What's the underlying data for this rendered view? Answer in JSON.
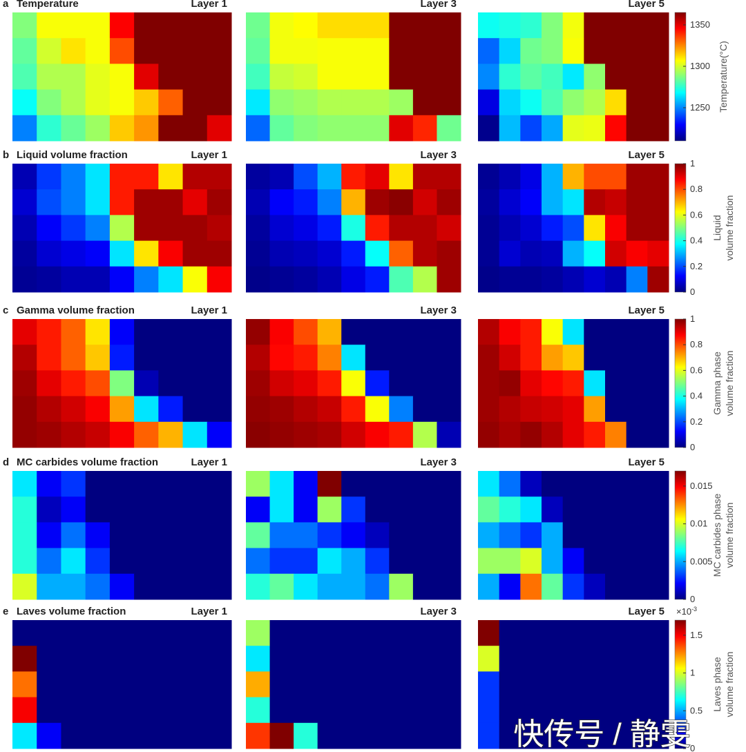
{
  "chart_data": [
    {
      "type": "heatmap",
      "label": "a",
      "title": "Temperature",
      "colorbar": {
        "label": [
          "Temperature(°C)"
        ],
        "clim": [
          1210,
          1365
        ],
        "ticks": [
          1250,
          1300,
          1350
        ]
      },
      "panels": [
        {
          "title": "Layer 1",
          "values": [
            [
              1288,
              1306,
              1306,
              1306,
              1346,
              1365,
              1365,
              1365,
              1365
            ],
            [
              1283,
              1300,
              1311,
              1306,
              1334,
              1365,
              1365,
              1365,
              1365
            ],
            [
              1280,
              1295,
              1295,
              1303,
              1306,
              1350,
              1365,
              1365,
              1365
            ],
            [
              1269,
              1288,
              1295,
              1303,
              1306,
              1315,
              1331,
              1365,
              1365
            ],
            [
              1249,
              1275,
              1284,
              1292,
              1315,
              1323,
              1365,
              1365,
              1350
            ]
          ]
        },
        {
          "title": "Layer 3",
          "values": [
            [
              1285,
              1305,
              1307,
              1312,
              1312,
              1312,
              1365,
              1365,
              1365
            ],
            [
              1283,
              1305,
              1305,
              1306,
              1306,
              1306,
              1365,
              1365,
              1365
            ],
            [
              1278,
              1298,
              1300,
              1306,
              1306,
              1306,
              1365,
              1365,
              1365
            ],
            [
              1265,
              1290,
              1292,
              1295,
              1295,
              1295,
              1292,
              1365,
              1365
            ],
            [
              1245,
              1283,
              1288,
              1290,
              1290,
              1290,
              1350,
              1340,
              1285
            ]
          ]
        },
        {
          "title": "Layer 5",
          "values": [
            [
              1270,
              1272,
              1275,
              1288,
              1305,
              1365,
              1365,
              1365,
              1365
            ],
            [
              1245,
              1262,
              1285,
              1288,
              1306,
              1365,
              1365,
              1365,
              1365
            ],
            [
              1250,
              1275,
              1282,
              1278,
              1265,
              1290,
              1365,
              1365,
              1365
            ],
            [
              1225,
              1262,
              1270,
              1280,
              1290,
              1295,
              1312,
              1365,
              1365
            ],
            [
              1212,
              1258,
              1240,
              1255,
              1303,
              1304,
              1345,
              1365,
              1365
            ]
          ]
        }
      ]
    },
    {
      "type": "heatmap",
      "label": "b",
      "title": "Liquid volume fraction",
      "colorbar": {
        "label": [
          "Liquid",
          "volume fraction"
        ],
        "clim": [
          0,
          1
        ],
        "ticks": [
          0,
          0.2,
          0.4,
          0.6,
          0.8,
          1
        ]
      },
      "panels": [
        {
          "title": "Layer 1",
          "values": [
            [
              0.05,
              0.18,
              0.25,
              0.35,
              0.85,
              0.85,
              0.65,
              0.95,
              0.95
            ],
            [
              0.08,
              0.2,
              0.25,
              0.35,
              0.85,
              0.97,
              0.97,
              0.9,
              0.97
            ],
            [
              0.05,
              0.12,
              0.18,
              0.25,
              0.55,
              0.97,
              0.97,
              0.97,
              0.95
            ],
            [
              0.03,
              0.08,
              0.1,
              0.12,
              0.35,
              0.65,
              0.88,
              0.97,
              0.97
            ],
            [
              0.02,
              0.03,
              0.05,
              0.05,
              0.12,
              0.25,
              0.35,
              0.62,
              0.88
            ]
          ]
        },
        {
          "title": "Layer 3",
          "values": [
            [
              0.03,
              0.05,
              0.2,
              0.3,
              0.85,
              0.9,
              0.65,
              0.95,
              0.95
            ],
            [
              0.05,
              0.12,
              0.15,
              0.25,
              0.7,
              0.97,
              0.99,
              0.92,
              0.97
            ],
            [
              0.03,
              0.08,
              0.1,
              0.15,
              0.4,
              0.85,
              0.95,
              0.95,
              0.92
            ],
            [
              0.02,
              0.05,
              0.06,
              0.08,
              0.15,
              0.38,
              0.78,
              0.95,
              0.97
            ],
            [
              0.01,
              0.02,
              0.03,
              0.05,
              0.1,
              0.15,
              0.45,
              0.55,
              0.97
            ]
          ]
        },
        {
          "title": "Layer 5",
          "values": [
            [
              0.02,
              0.05,
              0.1,
              0.3,
              0.7,
              0.8,
              0.8,
              0.97,
              0.97
            ],
            [
              0.03,
              0.08,
              0.12,
              0.3,
              0.35,
              0.95,
              0.93,
              0.97,
              0.97
            ],
            [
              0.02,
              0.05,
              0.08,
              0.15,
              0.2,
              0.65,
              0.88,
              0.97,
              0.97
            ],
            [
              0.02,
              0.08,
              0.05,
              0.06,
              0.3,
              0.38,
              0.92,
              0.88,
              0.9
            ],
            [
              0.01,
              0.02,
              0.02,
              0.03,
              0.05,
              0.08,
              0.05,
              0.25,
              0.97
            ]
          ]
        }
      ]
    },
    {
      "type": "heatmap",
      "label": "c",
      "title": "Gamma volume fraction",
      "colorbar": {
        "label": [
          "Gamma phase",
          "volume fraction"
        ],
        "clim": [
          0,
          1
        ],
        "ticks": [
          0,
          0.2,
          0.4,
          0.6,
          0.8,
          1
        ]
      },
      "panels": [
        {
          "title": "Layer 1",
          "values": [
            [
              0.9,
              0.85,
              0.78,
              0.65,
              0.12,
              0,
              0,
              0,
              0
            ],
            [
              0.95,
              0.85,
              0.78,
              0.68,
              0.15,
              0,
              0,
              0,
              0
            ],
            [
              0.97,
              0.9,
              0.85,
              0.8,
              0.5,
              0.05,
              0,
              0,
              0
            ],
            [
              0.98,
              0.95,
              0.92,
              0.88,
              0.72,
              0.35,
              0.15,
              0,
              0
            ],
            [
              0.98,
              0.97,
              0.95,
              0.93,
              0.88,
              0.78,
              0.7,
              0.35,
              0.12
            ]
          ]
        },
        {
          "title": "Layer 3",
          "values": [
            [
              0.98,
              0.88,
              0.8,
              0.7,
              0,
              0,
              0,
              0,
              0
            ],
            [
              0.95,
              0.87,
              0.85,
              0.75,
              0.35,
              0,
              0,
              0,
              0
            ],
            [
              0.97,
              0.92,
              0.9,
              0.85,
              0.62,
              0.15,
              0,
              0,
              0
            ],
            [
              0.98,
              0.97,
              0.95,
              0.93,
              0.85,
              0.62,
              0.25,
              0,
              0
            ],
            [
              0.99,
              0.98,
              0.97,
              0.96,
              0.92,
              0.88,
              0.85,
              0.55,
              0.05
            ]
          ]
        },
        {
          "title": "Layer 5",
          "values": [
            [
              0.95,
              0.88,
              0.85,
              0.62,
              0.35,
              0,
              0,
              0,
              0
            ],
            [
              0.97,
              0.92,
              0.85,
              0.72,
              0.68,
              0,
              0,
              0,
              0
            ],
            [
              0.97,
              0.98,
              0.9,
              0.87,
              0.85,
              0.35,
              0,
              0,
              0
            ],
            [
              0.97,
              0.95,
              0.93,
              0.92,
              0.9,
              0.72,
              0,
              0,
              0
            ],
            [
              0.98,
              0.96,
              0.98,
              0.95,
              0.9,
              0.85,
              0.75,
              0,
              0
            ]
          ]
        }
      ]
    },
    {
      "type": "heatmap",
      "label": "d",
      "title": "MC carbides volume fraction",
      "colorbar": {
        "label": [
          "MC carbides phase",
          "volume fraction"
        ],
        "clim": [
          0,
          0.017
        ],
        "ticks": [
          0,
          0.005,
          0.01,
          0.015
        ]
      },
      "panels": [
        {
          "title": "Layer 1",
          "values": [
            [
              0.006,
              0.002,
              0.003,
              0,
              0,
              0,
              0,
              0,
              0
            ],
            [
              0.007,
              0.001,
              0.002,
              0,
              0,
              0,
              0,
              0,
              0
            ],
            [
              0.007,
              0.002,
              0.004,
              0.002,
              0,
              0,
              0,
              0,
              0
            ],
            [
              0.007,
              0.004,
              0.006,
              0.003,
              0,
              0,
              0,
              0,
              0
            ],
            [
              0.01,
              0.005,
              0.005,
              0.004,
              0.002,
              0,
              0,
              0,
              0
            ]
          ]
        },
        {
          "title": "Layer 3",
          "values": [
            [
              0.009,
              0.006,
              0.002,
              0.017,
              0,
              0,
              0,
              0,
              0
            ],
            [
              0.002,
              0.006,
              0.002,
              0.009,
              0.003,
              0,
              0,
              0,
              0
            ],
            [
              0.008,
              0.004,
              0.004,
              0.003,
              0.002,
              0.001,
              0,
              0,
              0
            ],
            [
              0.004,
              0.003,
              0.003,
              0.006,
              0.005,
              0.003,
              0,
              0,
              0
            ],
            [
              0.007,
              0.008,
              0.006,
              0.005,
              0.005,
              0.004,
              0.009,
              0,
              0
            ]
          ]
        },
        {
          "title": "Layer 5",
          "values": [
            [
              0.006,
              0.004,
              0.001,
              0,
              0,
              0,
              0,
              0,
              0
            ],
            [
              0.008,
              0.007,
              0.006,
              0.001,
              0,
              0,
              0,
              0,
              0
            ],
            [
              0.005,
              0.004,
              0.003,
              0.005,
              0,
              0,
              0,
              0,
              0
            ],
            [
              0.009,
              0.009,
              0.01,
              0.005,
              0.002,
              0,
              0,
              0,
              0
            ],
            [
              0.005,
              0.002,
              0.013,
              0.008,
              0.003,
              0.001,
              0,
              0,
              0
            ]
          ]
        }
      ]
    },
    {
      "type": "heatmap",
      "label": "e",
      "title": "Laves volume fraction",
      "colorbar": {
        "label": [
          "Laves phase",
          "volume fraction"
        ],
        "clim": [
          0,
          1.7
        ],
        "ticks": [
          0,
          0.5,
          1,
          1.5
        ],
        "multiplier": {
          "base": "×10",
          "exponent": "-3"
        }
      },
      "panels": [
        {
          "title": "Layer 1",
          "values": [
            [
              0,
              0,
              0,
              0,
              0,
              0,
              0,
              0,
              0
            ],
            [
              1.7,
              0,
              0,
              0,
              0,
              0,
              0,
              0,
              0
            ],
            [
              1.3,
              0,
              0,
              0,
              0,
              0,
              0,
              0,
              0
            ],
            [
              1.5,
              0,
              0,
              0,
              0,
              0,
              0,
              0,
              0
            ],
            [
              0.6,
              0.2,
              0,
              0,
              0,
              0,
              0,
              0,
              0
            ]
          ]
        },
        {
          "title": "Layer 3",
          "values": [
            [
              0.9,
              0,
              0,
              0,
              0,
              0,
              0,
              0,
              0
            ],
            [
              0.6,
              0,
              0,
              0,
              0,
              0,
              0,
              0,
              0
            ],
            [
              1.2,
              0,
              0,
              0,
              0,
              0,
              0,
              0,
              0
            ],
            [
              0.7,
              0,
              0,
              0,
              0,
              0,
              0,
              0,
              0
            ],
            [
              1.4,
              1.7,
              0.7,
              0,
              0,
              0,
              0,
              0,
              0
            ]
          ]
        },
        {
          "title": "Layer 5",
          "values": [
            [
              1.7,
              0,
              0,
              0,
              0,
              0,
              0,
              0,
              0
            ],
            [
              1.0,
              0,
              0,
              0,
              0,
              0,
              0,
              0,
              0
            ],
            [
              0.3,
              0,
              0,
              0,
              0,
              0,
              0,
              0,
              0
            ],
            [
              0.3,
              0,
              0,
              0,
              0,
              0,
              0,
              0,
              0
            ],
            [
              0.3,
              0,
              0,
              0,
              0,
              0,
              0,
              0,
              0
            ]
          ]
        }
      ]
    }
  ],
  "watermark": "快传号 / 静雯"
}
